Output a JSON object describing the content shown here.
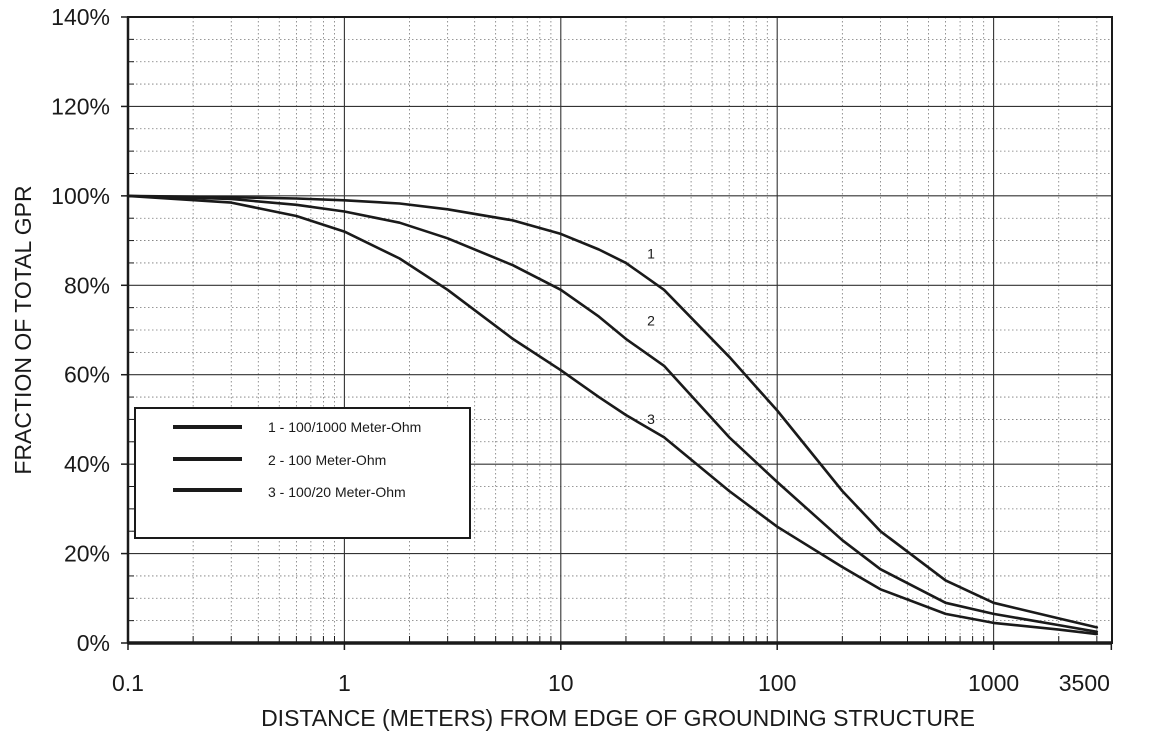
{
  "chart_data": {
    "type": "line",
    "title": "",
    "xlabel": "DISTANCE (METERS) FROM EDGE OF GROUNDING STRUCTURE",
    "ylabel": "FRACTION OF TOTAL GPR",
    "x_scale": "log",
    "xlim": [
      0.1,
      3500
    ],
    "ylim": [
      0,
      140
    ],
    "x_ticks": [
      {
        "value": 0.1,
        "label": "0.1"
      },
      {
        "value": 1,
        "label": "1"
      },
      {
        "value": 10,
        "label": "10"
      },
      {
        "value": 100,
        "label": "100"
      },
      {
        "value": 1000,
        "label": "1000"
      },
      {
        "value": 3500,
        "label": "3500"
      }
    ],
    "y_ticks": [
      {
        "value": 0,
        "label": "0%"
      },
      {
        "value": 20,
        "label": "20%"
      },
      {
        "value": 40,
        "label": "40%"
      },
      {
        "value": 60,
        "label": "60%"
      },
      {
        "value": 80,
        "label": "80%"
      },
      {
        "value": 100,
        "label": "100%"
      },
      {
        "value": 120,
        "label": "120%"
      },
      {
        "value": 140,
        "label": "140%"
      }
    ],
    "grid": true,
    "minor_grid": true,
    "legend_position": "left-middle",
    "series": [
      {
        "name": "1 - 100/1000 Meter-Ohm",
        "label": "1",
        "label_at": [
          24,
          86
        ],
        "points": [
          [
            0.1,
            100
          ],
          [
            0.3,
            99.7
          ],
          [
            0.6,
            99.4
          ],
          [
            1,
            99
          ],
          [
            1.8,
            98.3
          ],
          [
            3,
            97
          ],
          [
            6,
            94.5
          ],
          [
            10,
            91.5
          ],
          [
            15,
            88
          ],
          [
            20,
            85
          ],
          [
            30,
            79
          ],
          [
            60,
            64
          ],
          [
            100,
            52
          ],
          [
            200,
            34
          ],
          [
            300,
            25
          ],
          [
            600,
            14
          ],
          [
            1000,
            9
          ],
          [
            2000,
            5.5
          ],
          [
            3000,
            3.5
          ]
        ]
      },
      {
        "name": "2 - 100 Meter-Ohm",
        "label": "2",
        "label_at": [
          24,
          71
        ],
        "points": [
          [
            0.1,
            100
          ],
          [
            0.3,
            99.3
          ],
          [
            0.6,
            98
          ],
          [
            1,
            96.5
          ],
          [
            1.8,
            94
          ],
          [
            3,
            90.5
          ],
          [
            6,
            84.5
          ],
          [
            10,
            79
          ],
          [
            15,
            73
          ],
          [
            20,
            68
          ],
          [
            30,
            62
          ],
          [
            60,
            46
          ],
          [
            100,
            36
          ],
          [
            200,
            23
          ],
          [
            300,
            16.5
          ],
          [
            600,
            9
          ],
          [
            1000,
            6.5
          ],
          [
            2000,
            4
          ],
          [
            3000,
            2.5
          ]
        ]
      },
      {
        "name": "3 - 100/20 Meter-Ohm",
        "label": "3",
        "label_at": [
          24,
          49
        ],
        "points": [
          [
            0.1,
            100
          ],
          [
            0.3,
            98.5
          ],
          [
            0.6,
            95.5
          ],
          [
            1,
            92
          ],
          [
            1.8,
            86
          ],
          [
            3,
            79
          ],
          [
            6,
            68
          ],
          [
            10,
            61
          ],
          [
            15,
            55
          ],
          [
            20,
            51
          ],
          [
            30,
            46
          ],
          [
            60,
            34
          ],
          [
            100,
            26
          ],
          [
            200,
            17
          ],
          [
            300,
            12
          ],
          [
            600,
            6.5
          ],
          [
            1000,
            4.5
          ],
          [
            2000,
            3
          ],
          [
            3000,
            2
          ]
        ]
      }
    ]
  }
}
